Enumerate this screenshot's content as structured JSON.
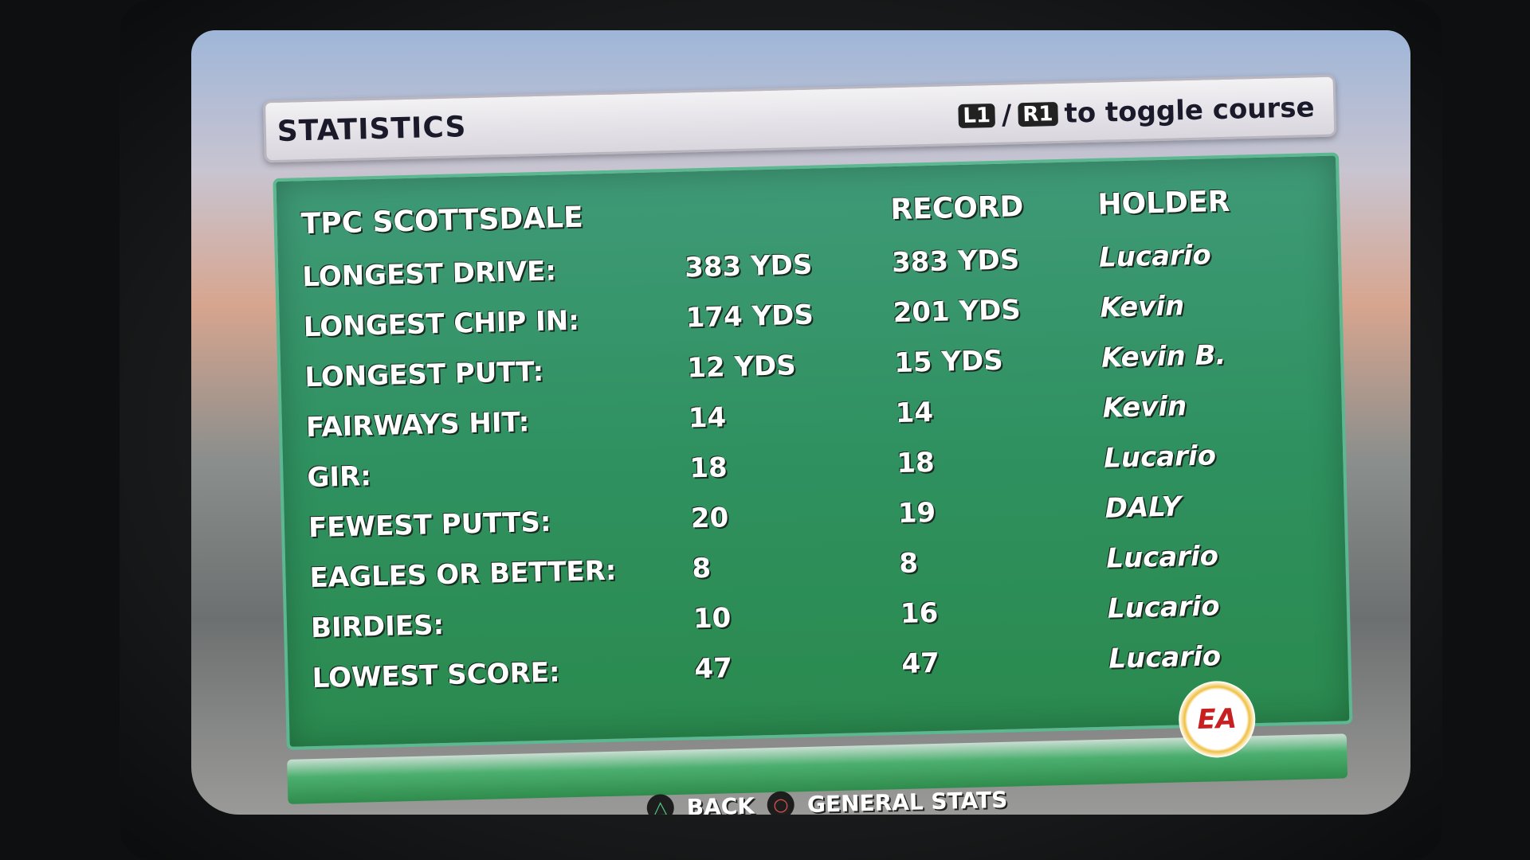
{
  "header": {
    "title": "STATISTICS",
    "hint_keys": [
      "L1",
      "R1"
    ],
    "hint_text": "to toggle course"
  },
  "table": {
    "course": "TPC SCOTTSDALE",
    "col_record": "RECORD",
    "col_holder": "HOLDER",
    "rows": [
      {
        "label": "LONGEST DRIVE:",
        "value": "383 YDS",
        "record": "383 YDS",
        "holder": "Lucario"
      },
      {
        "label": "LONGEST CHIP IN:",
        "value": "174 YDS",
        "record": "201 YDS",
        "holder": "Kevin"
      },
      {
        "label": "LONGEST PUTT:",
        "value": "12 YDS",
        "record": "15 YDS",
        "holder": "Kevin B."
      },
      {
        "label": "FAIRWAYS HIT:",
        "value": "14",
        "record": "14",
        "holder": "Kevin"
      },
      {
        "label": "GIR:",
        "value": "18",
        "record": "18",
        "holder": "Lucario"
      },
      {
        "label": "FEWEST PUTTS:",
        "value": "20",
        "record": "19",
        "holder": "DALY"
      },
      {
        "label": "EAGLES OR BETTER:",
        "value": "8",
        "record": "8",
        "holder": "Lucario"
      },
      {
        "label": "BIRDIES:",
        "value": "10",
        "record": "16",
        "holder": "Lucario"
      },
      {
        "label": "LOWEST SCORE:",
        "value": "47",
        "record": "47",
        "holder": "Lucario"
      }
    ]
  },
  "footer": {
    "back_label": "BACK",
    "general_label": "GENERAL STATS",
    "back_icon": "triangle-icon",
    "general_icon": "circle-icon"
  },
  "logo": "EA SPORTS"
}
